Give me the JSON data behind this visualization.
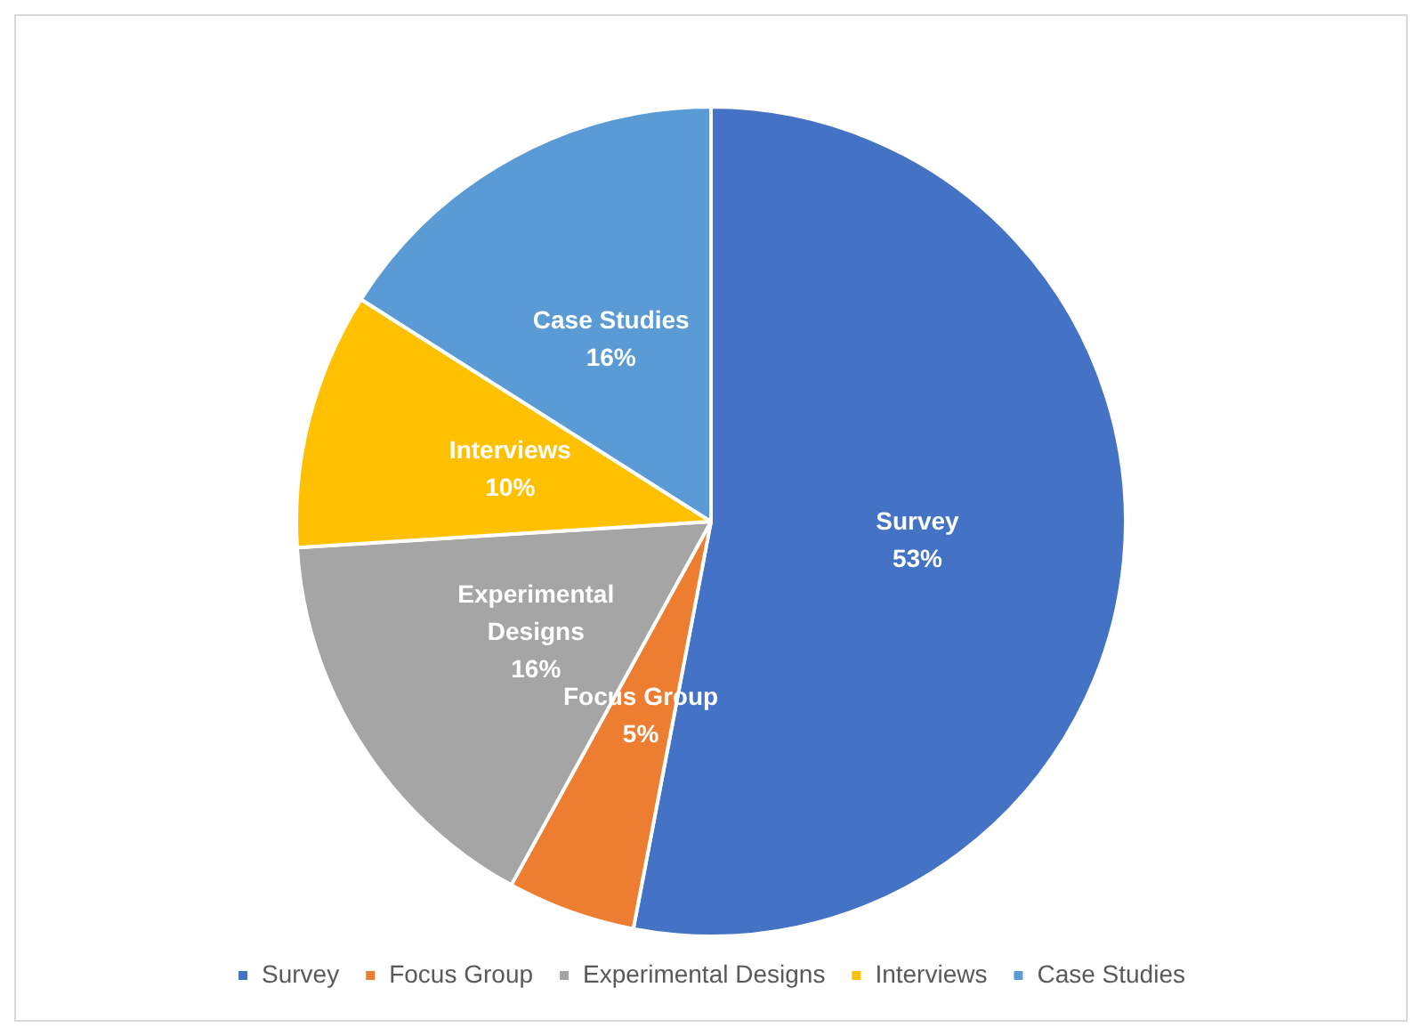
{
  "chart_data": {
    "type": "pie",
    "categories": [
      "Survey",
      "Focus Group",
      "Experimental Designs",
      "Interviews",
      "Case Studies"
    ],
    "values": [
      53,
      5,
      16,
      10,
      16
    ],
    "colors": [
      "#4472c4",
      "#ed7d31",
      "#a5a5a5",
      "#ffc000",
      "#5b9bd5"
    ],
    "value_labels": [
      "53%",
      "5%",
      "16%",
      "10%",
      "16%"
    ],
    "legend": "bottom"
  }
}
